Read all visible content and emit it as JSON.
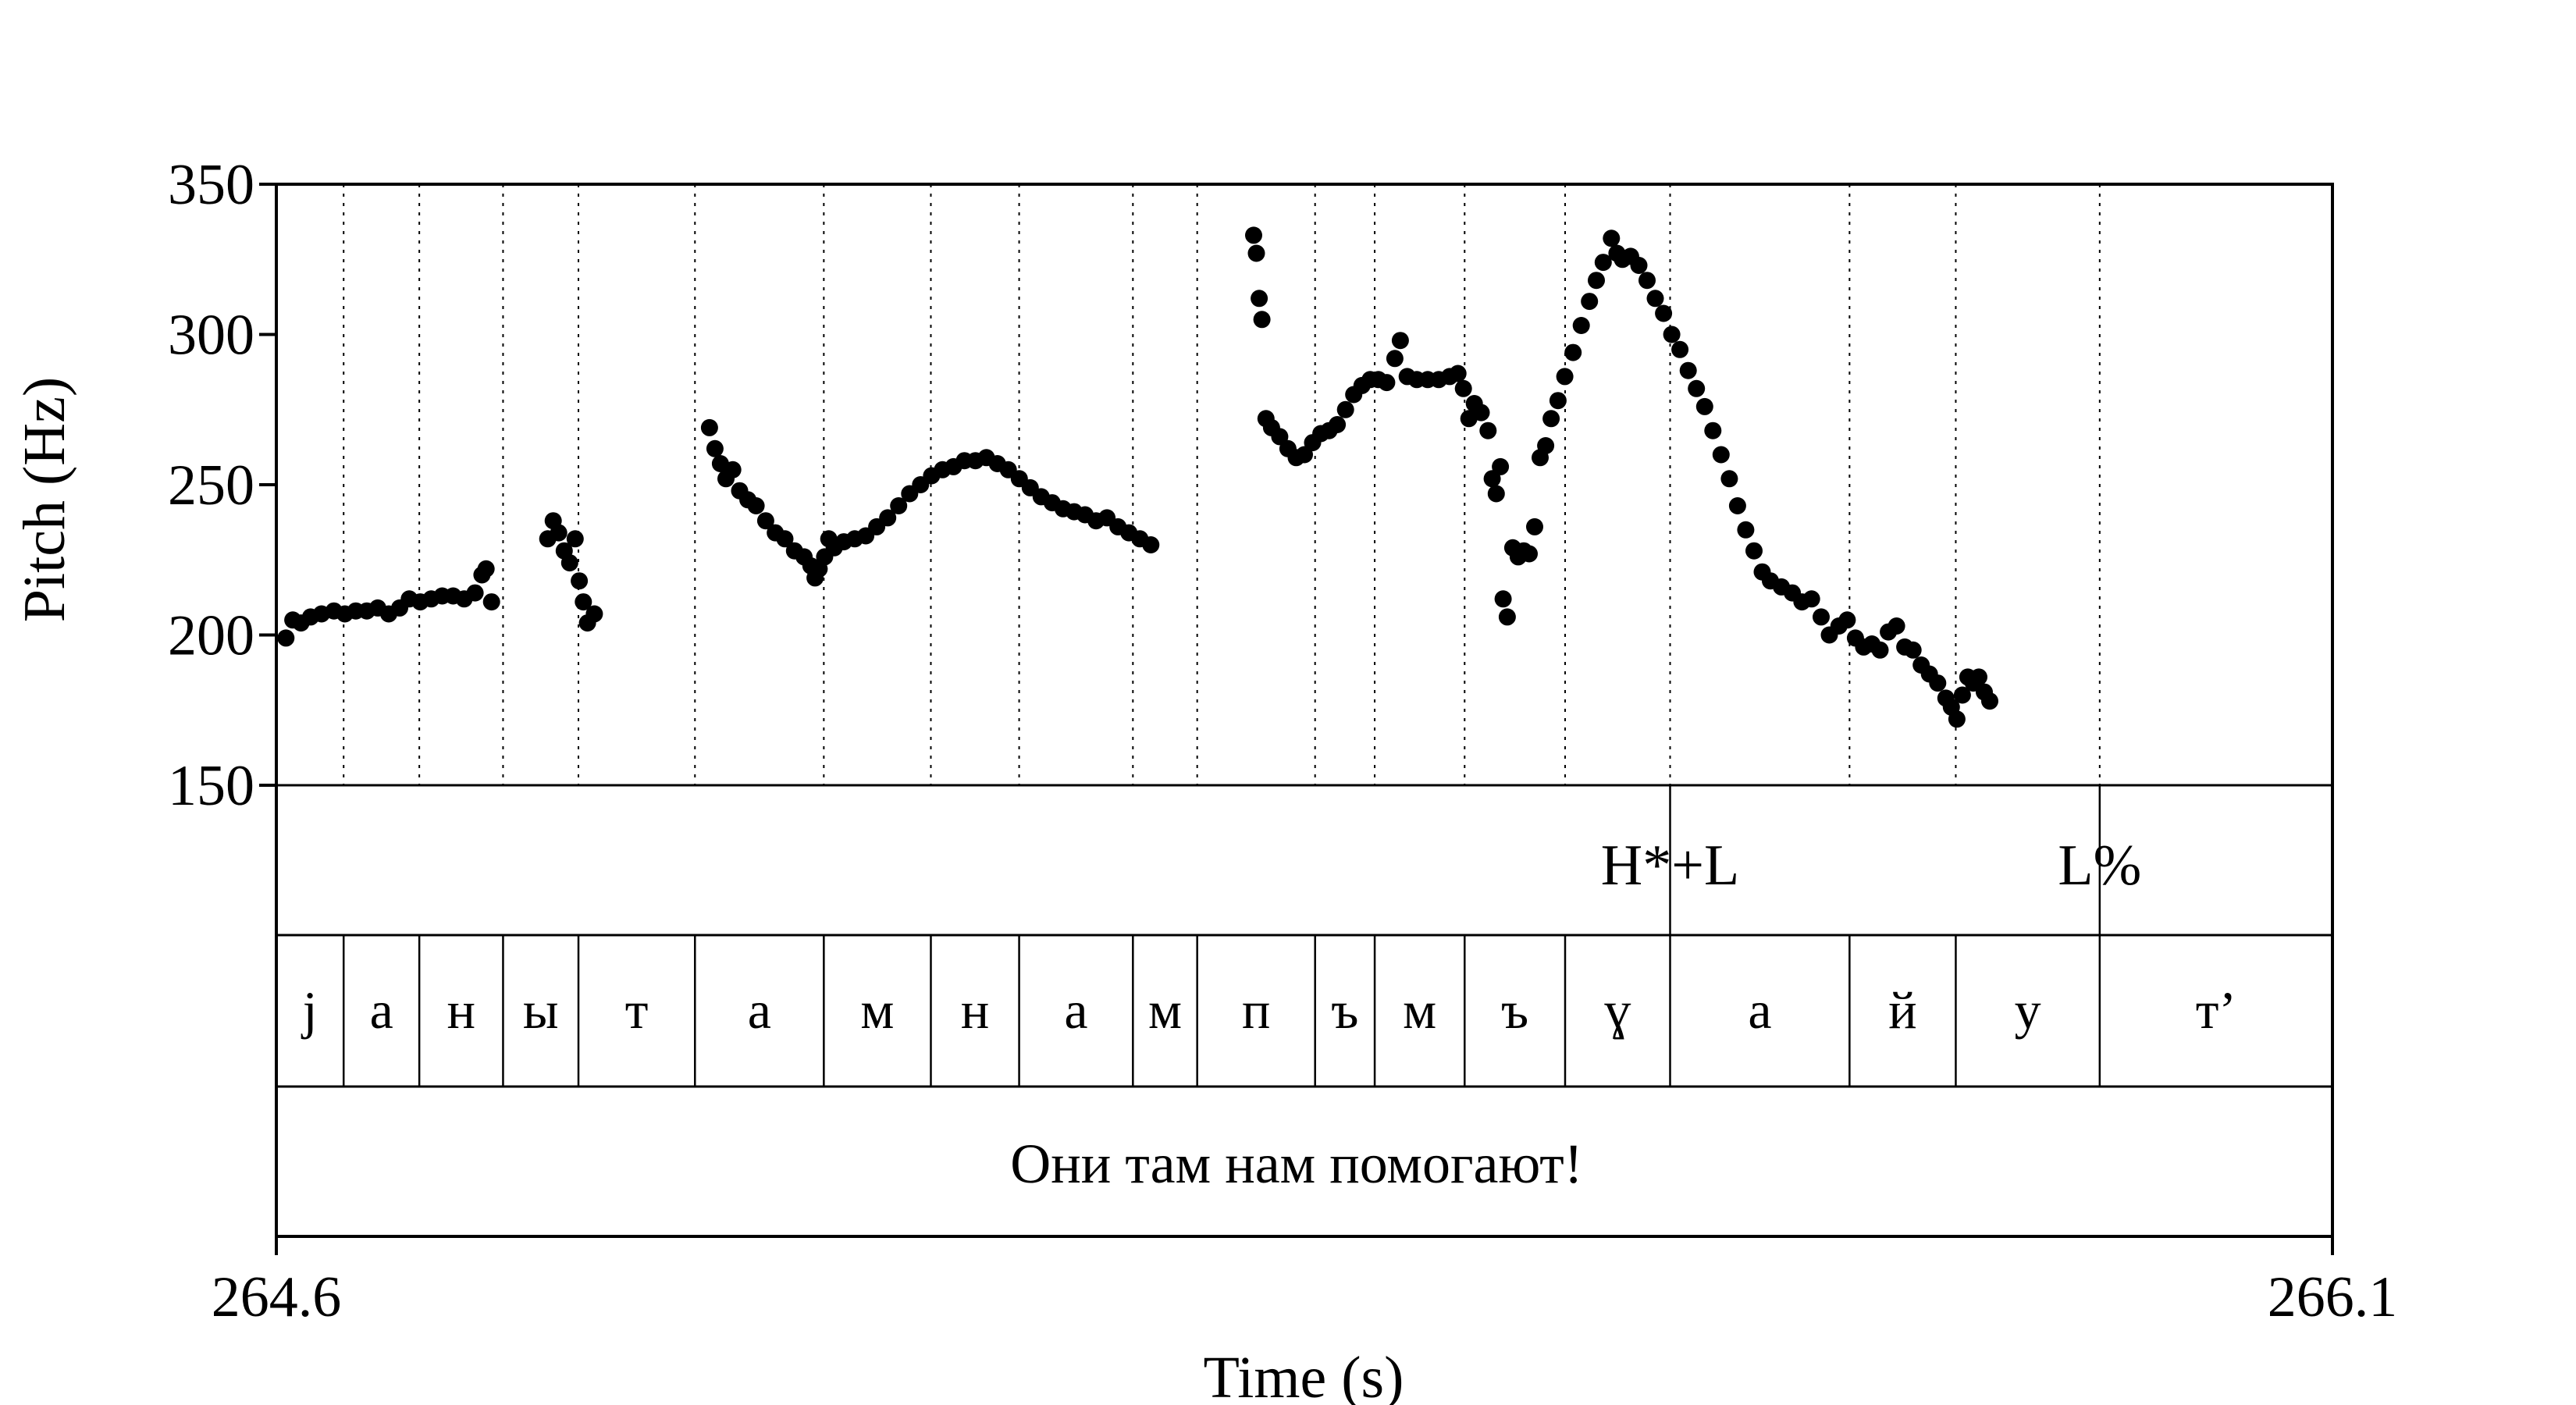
{
  "chart_data": {
    "type": "scatter",
    "title": "",
    "xlabel": "Time (s)",
    "ylabel": "Pitch (Hz)",
    "xlim": [
      264.6,
      266.1
    ],
    "ylim": [
      150,
      350
    ],
    "x_tick_labels": [
      "264.6",
      "266.1"
    ],
    "y_ticks": [
      150,
      200,
      250,
      300,
      350
    ],
    "y_tick_labels": [
      "150",
      "200",
      "250",
      "300",
      "350"
    ],
    "segment_boundaries": [
      264.6,
      264.6491,
      264.7043,
      264.7654,
      264.8204,
      264.9054,
      264.9994,
      265.0775,
      265.1419,
      265.2249,
      265.2718,
      265.3578,
      265.4013,
      265.4669,
      265.5402,
      265.6168,
      265.7477,
      265.8252,
      265.9302,
      266.1
    ],
    "tone_boundaries": [
      265.6168,
      265.9302
    ],
    "tones": [
      {
        "label": "H*+L",
        "x": 265.6168
      },
      {
        "label": "L%",
        "x": 265.9302
      }
    ],
    "segments": [
      "j",
      "а",
      "н",
      "ы",
      "т",
      "а",
      "м",
      "н",
      "а",
      "м",
      "п",
      "ъ",
      "м",
      "ъ",
      "ɣ",
      "а",
      "й",
      "у",
      "т’"
    ],
    "sentence": "Они там нам помогают!",
    "series": [
      {
        "values": [
          [
            264.607,
            199
          ],
          [
            264.612,
            205
          ],
          [
            264.618,
            204
          ],
          [
            264.625,
            206
          ],
          [
            264.633,
            207
          ],
          [
            264.642,
            208
          ],
          [
            264.65,
            207
          ],
          [
            264.658,
            208
          ],
          [
            264.666,
            208
          ],
          [
            264.674,
            209
          ],
          [
            264.682,
            207
          ],
          [
            264.69,
            209
          ],
          [
            264.697,
            212
          ],
          [
            264.705,
            211
          ],
          [
            264.713,
            212
          ],
          [
            264.721,
            213
          ],
          [
            264.729,
            213
          ],
          [
            264.737,
            212
          ],
          [
            264.745,
            214
          ],
          [
            264.75,
            220
          ],
          [
            264.753,
            222
          ],
          [
            264.757,
            211
          ],
          [
            264.798,
            232
          ],
          [
            264.802,
            238
          ],
          [
            264.806,
            234
          ],
          [
            264.81,
            228
          ],
          [
            264.814,
            224
          ],
          [
            264.818,
            232
          ],
          [
            264.821,
            218
          ],
          [
            264.824,
            211
          ],
          [
            264.827,
            204
          ],
          [
            264.832,
            207
          ],
          [
            264.916,
            269
          ],
          [
            264.92,
            262
          ],
          [
            264.924,
            257
          ],
          [
            264.928,
            252
          ],
          [
            264.933,
            255
          ],
          [
            264.938,
            248
          ],
          [
            264.944,
            245
          ],
          [
            264.95,
            243
          ],
          [
            264.957,
            238
          ],
          [
            264.964,
            234
          ],
          [
            264.971,
            232
          ],
          [
            264.978,
            228
          ],
          [
            264.985,
            226
          ],
          [
            264.99,
            223
          ],
          [
            264.993,
            219
          ],
          [
            264.996,
            222
          ],
          [
            265.0,
            226
          ],
          [
            265.003,
            232
          ],
          [
            265.007,
            229
          ],
          [
            265.014,
            231
          ],
          [
            265.022,
            232
          ],
          [
            265.03,
            233
          ],
          [
            265.038,
            236
          ],
          [
            265.046,
            239
          ],
          [
            265.054,
            243
          ],
          [
            265.062,
            247
          ],
          [
            265.07,
            250
          ],
          [
            265.078,
            253
          ],
          [
            265.086,
            255
          ],
          [
            265.094,
            256
          ],
          [
            265.102,
            258
          ],
          [
            265.11,
            258
          ],
          [
            265.118,
            259
          ],
          [
            265.126,
            257
          ],
          [
            265.134,
            255
          ],
          [
            265.142,
            252
          ],
          [
            265.15,
            249
          ],
          [
            265.158,
            246
          ],
          [
            265.166,
            244
          ],
          [
            265.174,
            242
          ],
          [
            265.182,
            241
          ],
          [
            265.19,
            240
          ],
          [
            265.198,
            238
          ],
          [
            265.206,
            239
          ],
          [
            265.214,
            236
          ],
          [
            265.222,
            234
          ],
          [
            265.23,
            232
          ],
          [
            265.238,
            230
          ],
          [
            265.313,
            333
          ],
          [
            265.315,
            327
          ],
          [
            265.317,
            312
          ],
          [
            265.319,
            305
          ],
          [
            265.322,
            272
          ],
          [
            265.326,
            269
          ],
          [
            265.332,
            266
          ],
          [
            265.338,
            262
          ],
          [
            265.344,
            259
          ],
          [
            265.35,
            260
          ],
          [
            265.356,
            264
          ],
          [
            265.362,
            267
          ],
          [
            265.368,
            268
          ],
          [
            265.374,
            270
          ],
          [
            265.38,
            275
          ],
          [
            265.386,
            280
          ],
          [
            265.392,
            283
          ],
          [
            265.398,
            285
          ],
          [
            265.404,
            285
          ],
          [
            265.41,
            284
          ],
          [
            265.416,
            292
          ],
          [
            265.42,
            298
          ],
          [
            265.425,
            286
          ],
          [
            265.432,
            285
          ],
          [
            265.44,
            285
          ],
          [
            265.448,
            285
          ],
          [
            265.456,
            286
          ],
          [
            265.462,
            287
          ],
          [
            265.466,
            282
          ],
          [
            265.47,
            272
          ],
          [
            265.474,
            277
          ],
          [
            265.479,
            274
          ],
          [
            265.484,
            268
          ],
          [
            265.487,
            252
          ],
          [
            265.49,
            247
          ],
          [
            265.493,
            256
          ],
          [
            265.495,
            212
          ],
          [
            265.498,
            206
          ],
          [
            265.502,
            229
          ],
          [
            265.506,
            226
          ],
          [
            265.51,
            228
          ],
          [
            265.514,
            227
          ],
          [
            265.518,
            236
          ],
          [
            265.522,
            259
          ],
          [
            265.526,
            263
          ],
          [
            265.53,
            272
          ],
          [
            265.535,
            278
          ],
          [
            265.54,
            286
          ],
          [
            265.546,
            294
          ],
          [
            265.552,
            303
          ],
          [
            265.558,
            311
          ],
          [
            265.563,
            318
          ],
          [
            265.568,
            324
          ],
          [
            265.574,
            332
          ],
          [
            265.578,
            327
          ],
          [
            265.582,
            325
          ],
          [
            265.588,
            326
          ],
          [
            265.594,
            323
          ],
          [
            265.6,
            318
          ],
          [
            265.606,
            312
          ],
          [
            265.612,
            307
          ],
          [
            265.618,
            300
          ],
          [
            265.624,
            295
          ],
          [
            265.63,
            288
          ],
          [
            265.636,
            282
          ],
          [
            265.642,
            276
          ],
          [
            265.648,
            268
          ],
          [
            265.654,
            260
          ],
          [
            265.66,
            252
          ],
          [
            265.666,
            243
          ],
          [
            265.672,
            235
          ],
          [
            265.678,
            228
          ],
          [
            265.684,
            221
          ],
          [
            265.69,
            218
          ],
          [
            265.698,
            216
          ],
          [
            265.706,
            214
          ],
          [
            265.713,
            211
          ],
          [
            265.72,
            212
          ],
          [
            265.727,
            206
          ],
          [
            265.733,
            200
          ],
          [
            265.74,
            203
          ],
          [
            265.746,
            205
          ],
          [
            265.752,
            199
          ],
          [
            265.758,
            196
          ],
          [
            265.764,
            197
          ],
          [
            265.77,
            195
          ],
          [
            265.776,
            201
          ],
          [
            265.782,
            203
          ],
          [
            265.788,
            196
          ],
          [
            265.794,
            195
          ],
          [
            265.8,
            190
          ],
          [
            265.806,
            187
          ],
          [
            265.812,
            184
          ],
          [
            265.818,
            179
          ],
          [
            265.822,
            176
          ],
          [
            265.826,
            172
          ],
          [
            265.83,
            180
          ],
          [
            265.834,
            186
          ],
          [
            265.838,
            184
          ],
          [
            265.842,
            186
          ],
          [
            265.846,
            181
          ],
          [
            265.85,
            178
          ]
        ]
      }
    ]
  }
}
